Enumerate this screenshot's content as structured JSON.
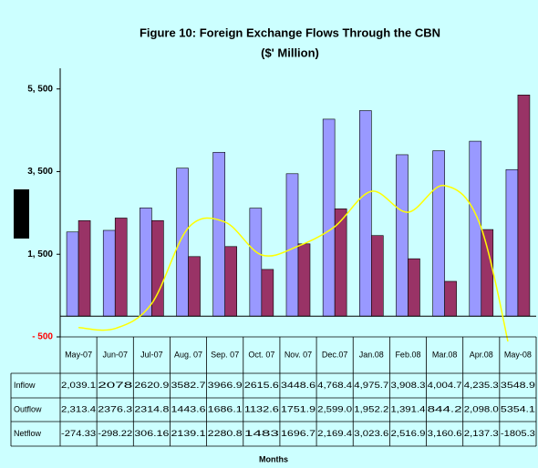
{
  "chart_data": {
    "type": "bar",
    "title": "Figure 10: Foreign Exchange Flows Through the CBN",
    "subtitle": "($' Million)",
    "x_label": "Months",
    "categories": [
      "May-07",
      "Jun-07",
      "Jul-07",
      "Aug. 07",
      "Sep. 07",
      "Oct. 07",
      "Nov. 07",
      "Dec.07",
      "Jan.08",
      "Feb.08",
      "Mar.08",
      "Apr.08",
      "May-08"
    ],
    "series": [
      {
        "name": "Inflow",
        "type": "bar",
        "color": "#9999ff",
        "values": [
          2039.1,
          2078,
          2620.9,
          3582.7,
          3966.9,
          2615.6,
          3448.6,
          4768.4,
          4975.7,
          3908.3,
          4004.7,
          4235.3,
          3548.9
        ],
        "value_labels": [
          "2,039.1",
          "2078",
          "2620.9",
          "3582.7",
          "3966.9",
          "2615.6",
          "3448.6",
          "4,768.4",
          "4,975.7",
          "3,908.3",
          "4,004.7",
          "4,235.3",
          "3548.9"
        ]
      },
      {
        "name": "Outflow",
        "type": "bar",
        "color": "#993366",
        "values": [
          2313.4,
          2376.3,
          2314.8,
          1443.6,
          1686.1,
          1132.6,
          1751.9,
          2599.0,
          1952.2,
          1391.4,
          844.2,
          2098.0,
          5354.1
        ],
        "value_labels": [
          "2,313.4",
          "2376.3",
          "2314.8",
          "1443.6",
          "1686.1",
          "1132.6",
          "1751.9",
          "2,599.0",
          "1,952.2",
          "1,391.4",
          "844.2",
          "2,098.0",
          "5354.1"
        ]
      },
      {
        "name": "Netflow",
        "type": "line",
        "color": "#ffff00",
        "values": [
          -274.33,
          -298.22,
          306.16,
          2139.1,
          2280.8,
          1483,
          1696.7,
          2169.4,
          3023.6,
          2516.9,
          3160.6,
          2137.3,
          -1805.3
        ],
        "value_labels": [
          "-274.33",
          "-298.22",
          "306.16",
          "2139.1",
          "2280.8",
          "1483",
          "1696.7",
          "2,169.4",
          "3,023.6",
          "2,516.9",
          "3,160.6",
          "2,137.3",
          "-1805.3"
        ]
      }
    ],
    "ylim": [
      -500,
      6000
    ],
    "yticks": [
      {
        "value": -500,
        "label": "- 500"
      },
      {
        "value": 1500,
        "label": "1, 500"
      },
      {
        "value": 3500,
        "label": "3, 500"
      },
      {
        "value": 5500,
        "label": "5, 500"
      }
    ]
  }
}
